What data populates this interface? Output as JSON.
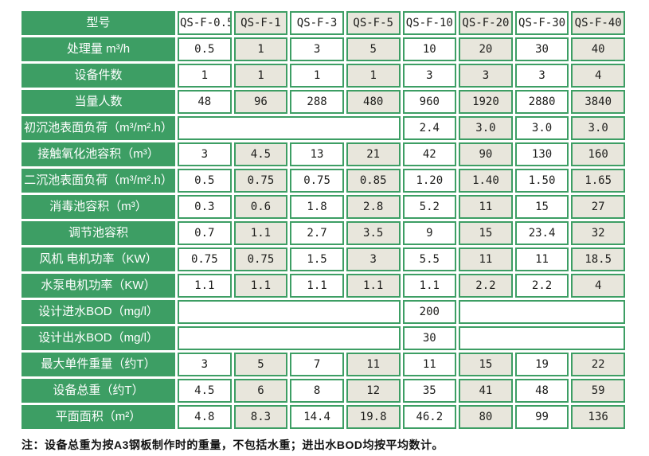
{
  "colors": {
    "green": "#3d9e64",
    "beige": "#e8e6dc",
    "ink": "#1d1d1b"
  },
  "table": {
    "header": {
      "label": "型号",
      "models": [
        "QS-F-0.5",
        "QS-F-1",
        "QS-F-3",
        "QS-F-5",
        "QS-F-10",
        "QS-F-20",
        "QS-F-30",
        "QS-F-40"
      ]
    },
    "rows": [
      {
        "label": "处理量 m³/h",
        "values": [
          "0.5",
          "1",
          "3",
          "5",
          "10",
          "20",
          "30",
          "40"
        ]
      },
      {
        "label": "设备件数",
        "values": [
          "1",
          "1",
          "1",
          "1",
          "3",
          "3",
          "3",
          "4"
        ]
      },
      {
        "label": "当量人数",
        "values": [
          "48",
          "96",
          "288",
          "480",
          "960",
          "1920",
          "2880",
          "3840"
        ]
      },
      {
        "label": "初沉池表面负荷（m³/m².h）",
        "values": [
          "2.4",
          "3.0",
          "3.0",
          "3.0"
        ]
      },
      {
        "label": "接触氧化池容积（m³）",
        "values": [
          "3",
          "4.5",
          "13",
          "21",
          "42",
          "90",
          "130",
          "160"
        ]
      },
      {
        "label": "二沉池表面负荷（m³/m².h）",
        "values": [
          "0.5",
          "0.75",
          "0.75",
          "0.85",
          "1.20",
          "1.40",
          "1.50",
          "1.65"
        ]
      },
      {
        "label": "消毒池容积（m³）",
        "values": [
          "0.3",
          "0.6",
          "1.8",
          "2.8",
          "5.2",
          "11",
          "15",
          "27"
        ]
      },
      {
        "label": "调节池容积",
        "values": [
          "0.7",
          "1.1",
          "2.7",
          "3.5",
          "9",
          "15",
          "23.4",
          "32"
        ]
      },
      {
        "label": "风机 电机功率（KW）",
        "values": [
          "0.75",
          "0.75",
          "1.5",
          "3",
          "5.5",
          "11",
          "11",
          "18.5"
        ]
      },
      {
        "label": "水泵电机功率（KW）",
        "values": [
          "1.1",
          "1.1",
          "1.1",
          "1.1",
          "1.1",
          "2.2",
          "2.2",
          "4"
        ]
      },
      {
        "label": "设计进水BOD（mg/l）",
        "value": "200"
      },
      {
        "label": "设计出水BOD（mg/l）",
        "value": "30"
      },
      {
        "label": "最大单件重量（约T）",
        "values": [
          "3",
          "5",
          "7",
          "11",
          "11",
          "15",
          "19",
          "22"
        ]
      },
      {
        "label": "设备总重（约T）",
        "values": [
          "4.5",
          "6",
          "8",
          "12",
          "35",
          "41",
          "48",
          "59"
        ]
      },
      {
        "label": "平面面积（m²）",
        "values": [
          "4.8",
          "8.3",
          "14.4",
          "19.8",
          "46.2",
          "80",
          "99",
          "136"
        ]
      }
    ],
    "note": "注：设备总重为按A3钢板制作时的重量，不包括水重；进出水BOD均按平均数计。"
  }
}
